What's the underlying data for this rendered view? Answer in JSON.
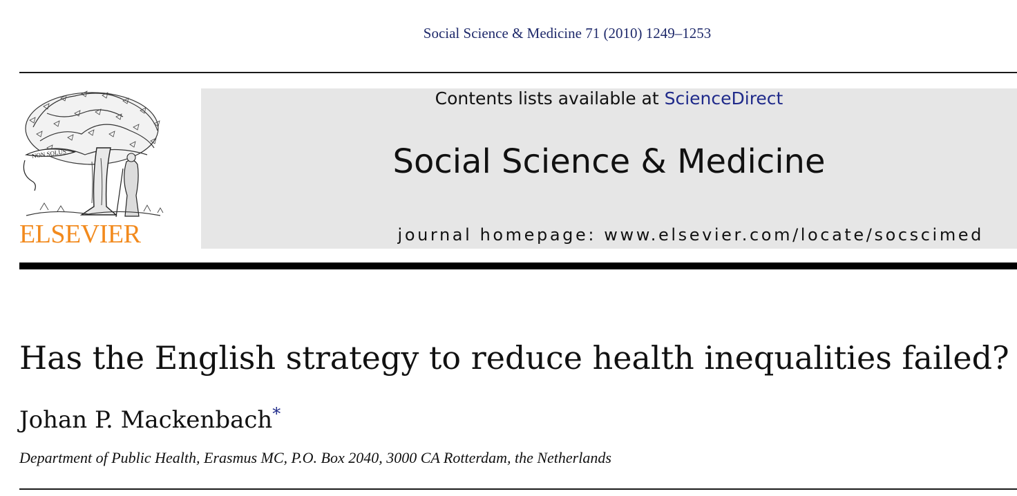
{
  "header": {
    "citation": "Social Science & Medicine 71 (2010) 1249–1253"
  },
  "publisher": {
    "logo_icon": "elsevier-tree-logo-icon",
    "logo_motto": "NON SOLUS",
    "wordmark": "ELSEVIER",
    "wordmark_color": "#f28a1d"
  },
  "banner": {
    "contents_prefix": "Contents lists available at ",
    "contents_link": "ScienceDirect",
    "journal_title": "Social Science & Medicine",
    "homepage": "journal homepage: www.elsevier.com/locate/socscimed",
    "background_color": "#e6e6e6",
    "link_color": "#1f2a8a"
  },
  "article": {
    "title": "Has the English strategy to reduce health inequalities failed?",
    "author": "Johan P. Mackenbach",
    "author_marker": "*",
    "affiliation": "Department of Public Health, Erasmus MC, P.O. Box 2040, 3000 CA Rotterdam, the Netherlands"
  }
}
